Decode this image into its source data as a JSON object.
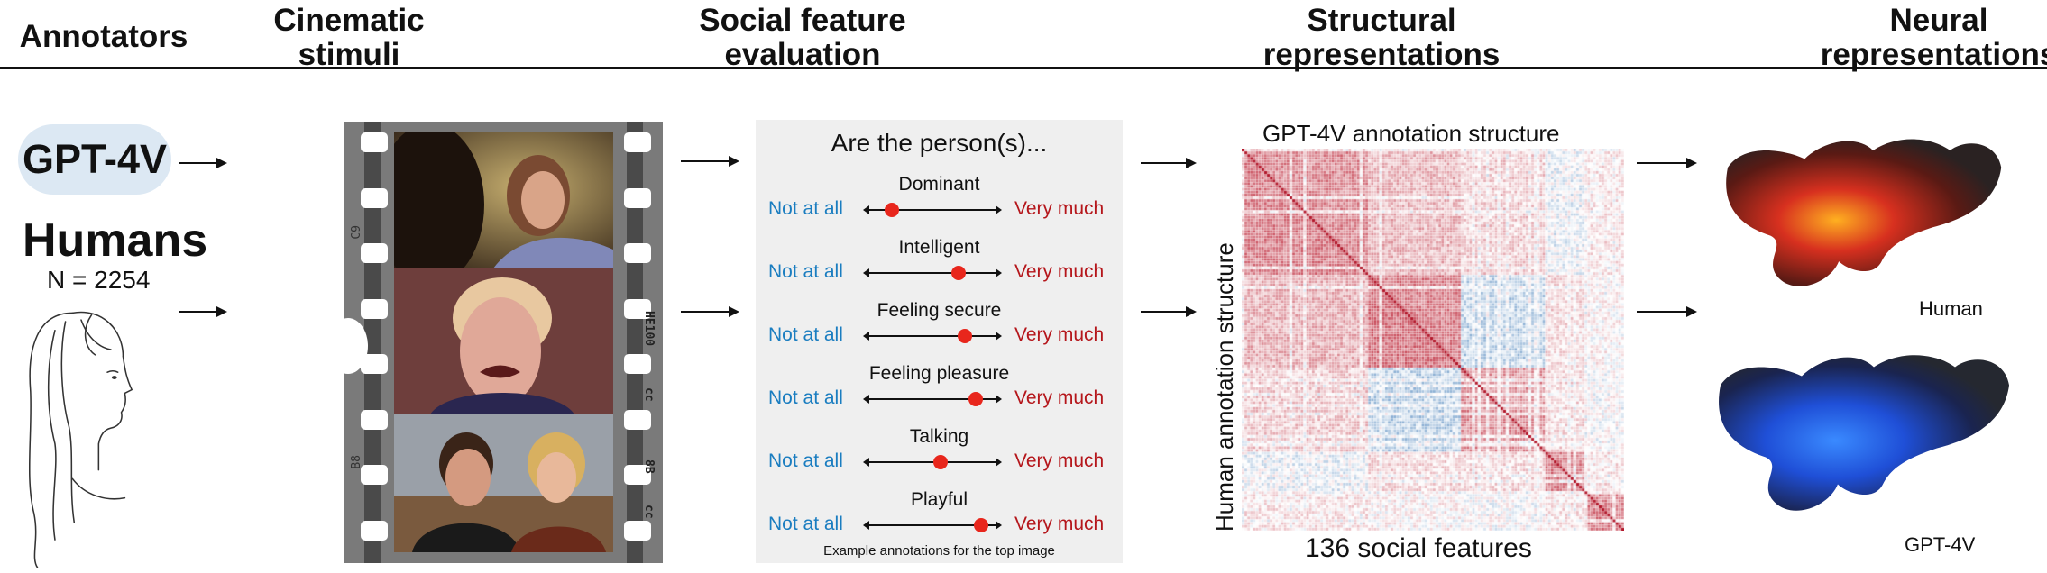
{
  "headers": {
    "annotators": "Annotators",
    "stimuli_line1": "Cinematic",
    "stimuli_line2": "stimuli",
    "evaluation_line1": "Social feature",
    "evaluation_line2": "evaluation",
    "structural_line1": "Structural",
    "structural_line2": "representations",
    "neural_line1": "Neural",
    "neural_line2": "representations"
  },
  "annotators": {
    "gpt": "GPT-4V",
    "humans": "Humans",
    "n": "N = 2254"
  },
  "film": {
    "marks": [
      "C9",
      "HE100",
      "cc",
      "B8",
      "8B",
      "cc"
    ]
  },
  "evaluation": {
    "question": "Are the person(s)...",
    "low_label": "Not at all",
    "high_label": "Very much",
    "items": [
      {
        "name": "Dominant",
        "rating": 0.2
      },
      {
        "name": "Intelligent",
        "rating": 0.69
      },
      {
        "name": "Feeling secure",
        "rating": 0.74
      },
      {
        "name": "Feeling pleasure",
        "rating": 0.82
      },
      {
        "name": "Talking",
        "rating": 0.56
      },
      {
        "name": "Playful",
        "rating": 0.86
      }
    ],
    "footnote": "Example annotations for the top image"
  },
  "structural": {
    "title": "GPT-4V annotation structure",
    "ylabel": "Human annotation structure",
    "xlabel": "136 social features",
    "colors": {
      "positive": "#b2182b",
      "negative": "#2166ac",
      "diagonal": "#b2182b"
    }
  },
  "neural": {
    "human_label": "Human",
    "gpt_label": "GPT-4V",
    "colors": {
      "human": "#d7301f",
      "gpt": "#1f5fd7"
    }
  }
}
